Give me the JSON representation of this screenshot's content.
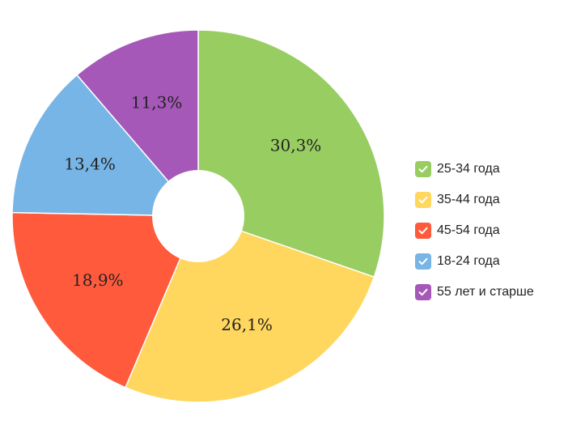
{
  "chart_data": {
    "type": "pie",
    "donut": true,
    "legend_position": "right",
    "slices": [
      {
        "name": "25-34 года",
        "value": 30.3,
        "label": "30,3%",
        "color": "#98cd62"
      },
      {
        "name": "35-44 года",
        "value": 26.1,
        "label": "26,1%",
        "color": "#ffd65e"
      },
      {
        "name": "45-54 года",
        "value": 18.9,
        "label": "18,9%",
        "color": "#ff5a3c"
      },
      {
        "name": "18-24 года",
        "value": 13.4,
        "label": "13,4%",
        "color": "#77b5e6"
      },
      {
        "name": "55 лет и старше",
        "value": 11.3,
        "label": "11,3%",
        "color": "#a558b8"
      }
    ]
  }
}
